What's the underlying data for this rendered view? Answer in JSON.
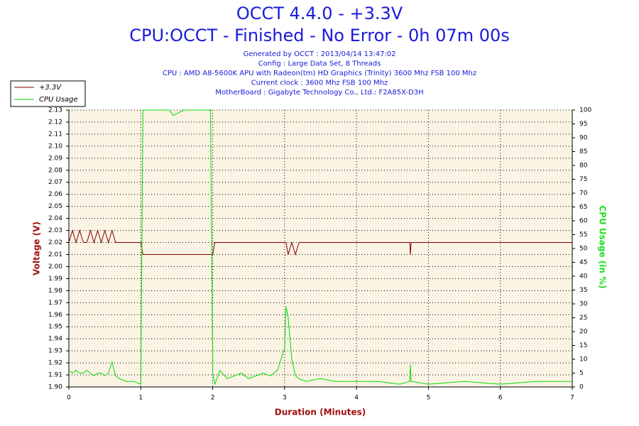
{
  "chart_data": {
    "type": "line",
    "title": "OCCT 4.4.0 - +3.3V",
    "subtitle": "CPU:OCCT - Finished - No Error - 0h 07m 00s",
    "notes": [
      "Generated by OCCT : 2013/04/14 13:47:02",
      "Config : Large Data Set, 8 Threads",
      "CPU : AMD A8-5600K APU with Radeon(tm) HD Graphics (Trinity) 3600 Mhz FSB 100 Mhz",
      "Current clock : 3600 Mhz FSB 100 Mhz",
      "MotherBoard : Gigabyte Technology Co., Ltd.: F2A85X-D3H"
    ],
    "x_label": "Duration (Minutes)",
    "y_label": "Voltage (V)",
    "y2_label": "CPU Usage (in %)",
    "x": [
      0,
      0.05,
      0.1,
      0.15,
      0.2,
      0.25,
      0.3,
      0.35,
      0.4,
      0.45,
      0.5,
      0.55,
      0.6,
      0.65,
      0.7,
      0.8,
      0.9,
      1.0,
      1.03,
      1.05,
      1.2,
      1.4,
      1.45,
      1.6,
      1.8,
      1.97,
      2.0,
      2.03,
      2.1,
      2.2,
      2.3,
      2.4,
      2.5,
      2.6,
      2.7,
      2.8,
      2.9,
      2.95,
      3.0,
      3.02,
      3.05,
      3.1,
      3.15,
      3.2,
      3.3,
      3.5,
      3.7,
      4.0,
      4.3,
      4.6,
      4.74,
      4.75,
      4.76,
      5.0,
      5.5,
      6.0,
      6.5,
      7.0
    ],
    "series": [
      {
        "name": "+3.3V",
        "color": "#800000",
        "values": [
          2.02,
          2.03,
          2.02,
          2.03,
          2.02,
          2.02,
          2.03,
          2.02,
          2.03,
          2.02,
          2.03,
          2.02,
          2.03,
          2.02,
          2.02,
          2.02,
          2.02,
          2.02,
          2.01,
          2.01,
          2.01,
          2.01,
          2.01,
          2.01,
          2.01,
          2.01,
          2.01,
          2.02,
          2.02,
          2.02,
          2.02,
          2.02,
          2.02,
          2.02,
          2.02,
          2.02,
          2.02,
          2.02,
          2.02,
          2.02,
          2.01,
          2.02,
          2.01,
          2.02,
          2.02,
          2.02,
          2.02,
          2.02,
          2.02,
          2.02,
          2.02,
          2.01,
          2.02,
          2.02,
          2.02,
          2.02,
          2.02,
          2.02
        ]
      },
      {
        "name": "CPU Usage",
        "color": "#00dd00",
        "axis": "y2",
        "values": [
          6,
          5,
          6,
          5,
          5,
          6,
          5,
          4,
          5,
          5,
          4,
          5,
          9,
          4,
          3,
          2,
          2,
          1,
          100,
          100,
          100,
          100,
          98,
          100,
          100,
          100,
          5,
          1,
          6,
          3,
          4,
          5,
          3,
          4,
          5,
          4,
          6,
          10,
          14,
          29,
          25,
          10,
          4,
          3,
          2,
          3,
          2,
          2,
          2,
          1,
          2,
          8,
          2,
          1,
          2,
          1,
          2,
          2
        ]
      }
    ],
    "xlim": [
      0,
      7
    ],
    "xticks": [
      0,
      1,
      2,
      3,
      4,
      5,
      6,
      7
    ],
    "ylim": [
      1.9,
      2.13
    ],
    "yticks": [
      {
        "value": 1.9,
        "label": "1.90"
      },
      1.91,
      1.92,
      1.93,
      1.94,
      1.95,
      1.96,
      1.97,
      1.98,
      1.99,
      {
        "value": 2.0,
        "label": "2.00"
      },
      2.01,
      2.02,
      2.03,
      2.04,
      2.05,
      2.06,
      2.07,
      2.08,
      2.09,
      {
        "value": 2.1,
        "label": "2.10"
      },
      2.11,
      2.12,
      2.13
    ],
    "y2lim": [
      0,
      100
    ],
    "y2ticks": [
      0,
      5,
      10,
      15,
      20,
      25,
      30,
      35,
      40,
      45,
      50,
      55,
      60,
      65,
      70,
      75,
      80,
      85,
      90,
      95,
      100
    ],
    "grid": true,
    "legend": "top-left"
  }
}
